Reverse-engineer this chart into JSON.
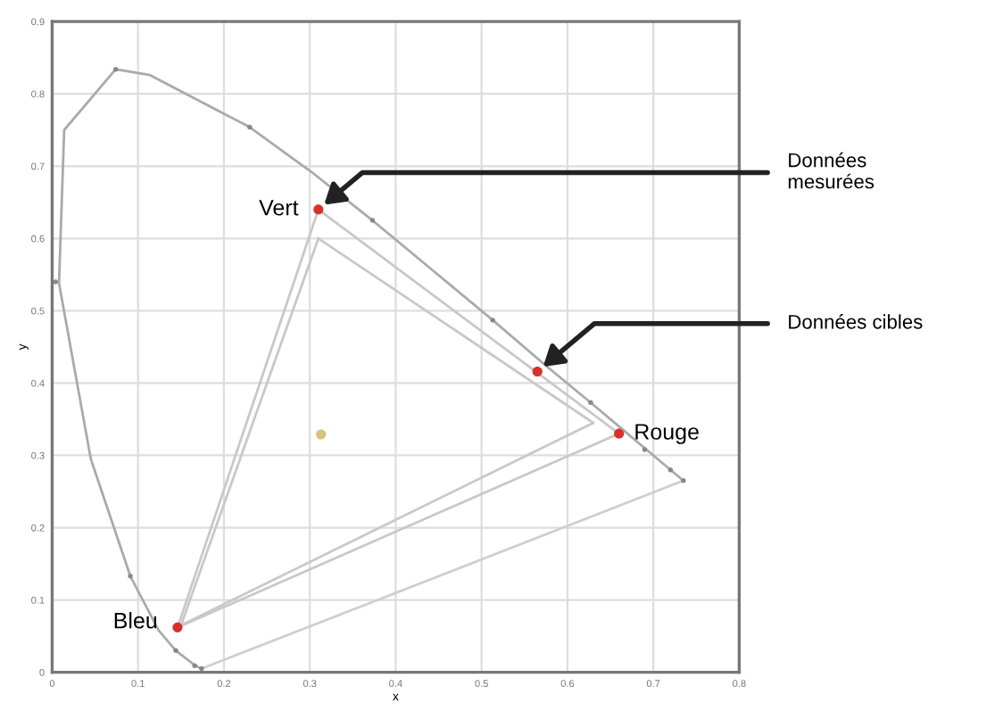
{
  "chart_data": {
    "type": "line",
    "xlabel": "x",
    "ylabel": "y",
    "xlim": [
      0,
      0.8
    ],
    "ylim": [
      0,
      0.9
    ],
    "xticks": [
      0,
      0.1,
      0.2,
      0.3,
      0.4,
      0.5,
      0.6,
      0.7,
      0.8
    ],
    "yticks": [
      0,
      0.1,
      0.2,
      0.3,
      0.4,
      0.5,
      0.6,
      0.7,
      0.8,
      0.9
    ],
    "grid": true,
    "legend": false,
    "series": [
      {
        "color": "#aaaaaa",
        "x": [
          0.174,
          0.167,
          0.144,
          0.124,
          0.091,
          0.045,
          0.008,
          0.014,
          0.074,
          0.114,
          0.23,
          0.302,
          0.373,
          0.444,
          0.513,
          0.575,
          0.627,
          0.666,
          0.692,
          0.708,
          0.735
        ],
        "values": [
          0.005,
          0.009,
          0.03,
          0.058,
          0.133,
          0.295,
          0.538,
          0.75,
          0.834,
          0.826,
          0.754,
          0.692,
          0.625,
          0.555,
          0.487,
          0.424,
          0.373,
          0.334,
          0.308,
          0.292,
          0.265
        ]
      },
      {
        "color": "#cfcfcf",
        "x": [
          0.174,
          0.735
        ],
        "values": [
          0.005,
          0.265
        ]
      },
      {
        "type": "scatter",
        "color": "#888888",
        "marker": "circle",
        "x": [
          0.074,
          0.23,
          0.004,
          0.091,
          0.144,
          0.166,
          0.174,
          0.373,
          0.513,
          0.627,
          0.69,
          0.72,
          0.735
        ],
        "values": [
          0.834,
          0.754,
          0.54,
          0.133,
          0.03,
          0.009,
          0.005,
          0.625,
          0.487,
          0.373,
          0.308,
          0.28,
          0.265
        ]
      },
      {
        "color": "#c8c8c8",
        "x": [
          0.31,
          0.66
        ],
        "values": [
          0.64,
          0.33
        ]
      },
      {
        "color": "#c8c8c8",
        "x": [
          0.146,
          0.66
        ],
        "values": [
          0.062,
          0.33
        ]
      },
      {
        "color": "#c8c8c8",
        "x": [
          0.146,
          0.31
        ],
        "values": [
          0.062,
          0.64
        ]
      },
      {
        "color": "#c8c8c8",
        "x": [
          0.31,
          0.63
        ],
        "values": [
          0.6,
          0.345
        ]
      },
      {
        "color": "#c8c8c8",
        "x": [
          0.15,
          0.63
        ],
        "values": [
          0.065,
          0.345
        ]
      },
      {
        "color": "#c8c8c8",
        "x": [
          0.15,
          0.31
        ],
        "values": [
          0.065,
          0.6
        ]
      },
      {
        "type": "scatter",
        "color": "#d9302c",
        "marker": "circle",
        "x": [
          0.31,
          0.66,
          0.146,
          0.565
        ],
        "values": [
          0.64,
          0.33,
          0.062,
          0.416
        ]
      },
      {
        "type": "scatter",
        "color": "#d9c27a",
        "marker": "circle",
        "x": [
          0.313
        ],
        "values": [
          0.329
        ]
      }
    ],
    "annotations": [
      {
        "text": "Vert",
        "x": 0.31,
        "y": 0.64
      },
      {
        "text": "Rouge",
        "x": 0.66,
        "y": 0.33
      },
      {
        "text": "Bleu",
        "x": 0.146,
        "y": 0.062
      },
      {
        "text": "Données\nmesurées",
        "x": 0.31,
        "y": 0.64
      },
      {
        "text": "Données cibles",
        "x": 0.565,
        "y": 0.416
      }
    ]
  }
}
